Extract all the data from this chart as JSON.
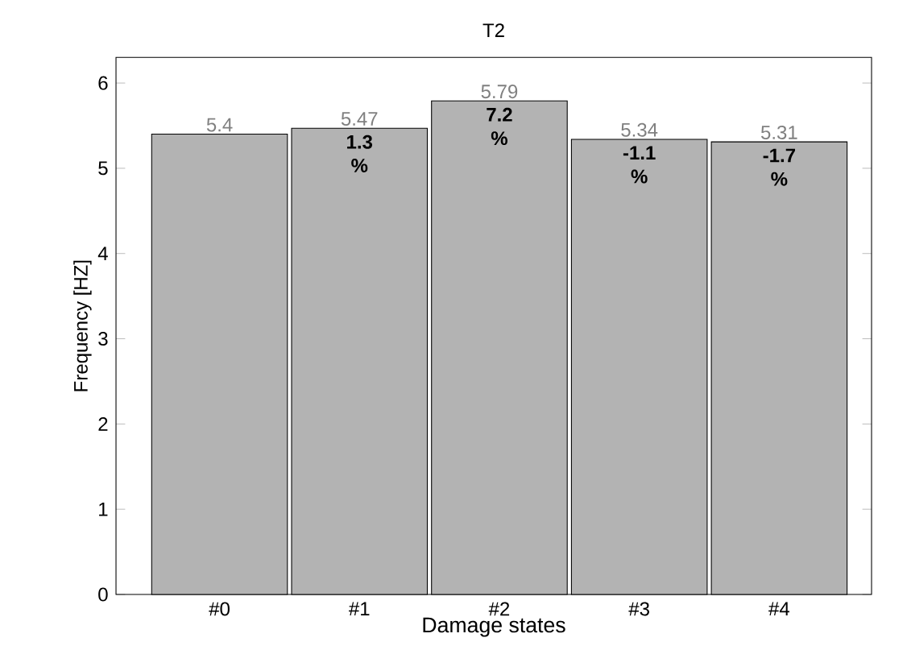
{
  "chart_data": {
    "type": "bar",
    "title": "T2",
    "xlabel": "Damage states",
    "ylabel": "Frequency [HZ]",
    "categories": [
      "#0",
      "#1",
      "#2",
      "#3",
      "#4"
    ],
    "values": [
      5.4,
      5.47,
      5.79,
      5.34,
      5.31
    ],
    "color": "#b3b3b3",
    "ylim": [
      0,
      6.3
    ],
    "yticks": [
      0,
      1,
      2,
      3,
      4,
      5,
      6
    ],
    "data_labels": true,
    "annotations": [
      {
        "text": "1.3 %",
        "x": "#1",
        "y": 5.47
      },
      {
        "text": "7.2 %",
        "x": "#2",
        "y": 5.79
      },
      {
        "text": "-1.1 %",
        "x": "#3",
        "y": 5.34
      },
      {
        "text": "-1.7 %",
        "x": "#4",
        "y": 5.31
      }
    ]
  }
}
